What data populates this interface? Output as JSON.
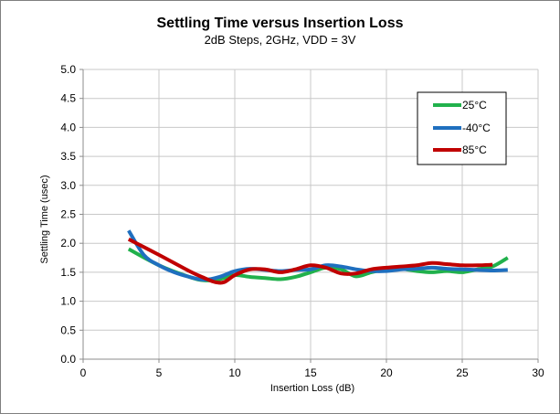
{
  "chart_data": {
    "type": "line",
    "title": "Settling Time versus Insertion Loss",
    "subtitle": "2dB Steps, 2GHz, VDD = 3V",
    "xlabel": "Insertion Loss (dB)",
    "ylabel": "Settling Time (usec)",
    "xlim": [
      0,
      30
    ],
    "ylim": [
      0,
      5.0
    ],
    "x_ticks": [
      "0",
      "5",
      "10",
      "15",
      "20",
      "25",
      "30"
    ],
    "y_ticks": [
      "0.0",
      "0.5",
      "1.0",
      "1.5",
      "2.0",
      "2.5",
      "3.0",
      "3.5",
      "4.0",
      "4.5",
      "5.0"
    ],
    "grid": true,
    "legend_position": "top-right",
    "series": [
      {
        "name": "25°C",
        "color": "#21b14c",
        "x": [
          3,
          5,
          7,
          8,
          9,
          10,
          11,
          12,
          13,
          14,
          15,
          16,
          17,
          18,
          19,
          20,
          21,
          22,
          23,
          24,
          25,
          26,
          27,
          28
        ],
        "y": [
          1.9,
          1.62,
          1.42,
          1.36,
          1.38,
          1.45,
          1.42,
          1.4,
          1.38,
          1.42,
          1.5,
          1.58,
          1.55,
          1.43,
          1.5,
          1.55,
          1.56,
          1.52,
          1.5,
          1.52,
          1.5,
          1.55,
          1.6,
          1.75
        ]
      },
      {
        "name": "-40°C",
        "color": "#1f6fbf",
        "x": [
          3,
          4,
          5,
          6,
          7,
          8,
          9,
          10,
          11,
          12,
          13,
          14,
          15,
          16,
          17,
          18,
          19,
          20,
          21,
          22,
          23,
          24,
          25,
          26,
          27,
          28
        ],
        "y": [
          2.22,
          1.8,
          1.62,
          1.5,
          1.42,
          1.37,
          1.42,
          1.52,
          1.56,
          1.54,
          1.52,
          1.54,
          1.55,
          1.62,
          1.6,
          1.55,
          1.52,
          1.52,
          1.55,
          1.56,
          1.58,
          1.56,
          1.55,
          1.54,
          1.53,
          1.54
        ]
      },
      {
        "name": "85°C",
        "color": "#c00000",
        "x": [
          3,
          5,
          7,
          8,
          8.7,
          9.3,
          10,
          11,
          12,
          13,
          14,
          15,
          16,
          17,
          18,
          19,
          20,
          21,
          22,
          23,
          24,
          25,
          26,
          27
        ],
        "y": [
          2.07,
          1.8,
          1.52,
          1.4,
          1.33,
          1.33,
          1.45,
          1.55,
          1.55,
          1.5,
          1.55,
          1.62,
          1.58,
          1.48,
          1.48,
          1.55,
          1.58,
          1.6,
          1.62,
          1.66,
          1.64,
          1.62,
          1.62,
          1.63
        ]
      }
    ]
  }
}
